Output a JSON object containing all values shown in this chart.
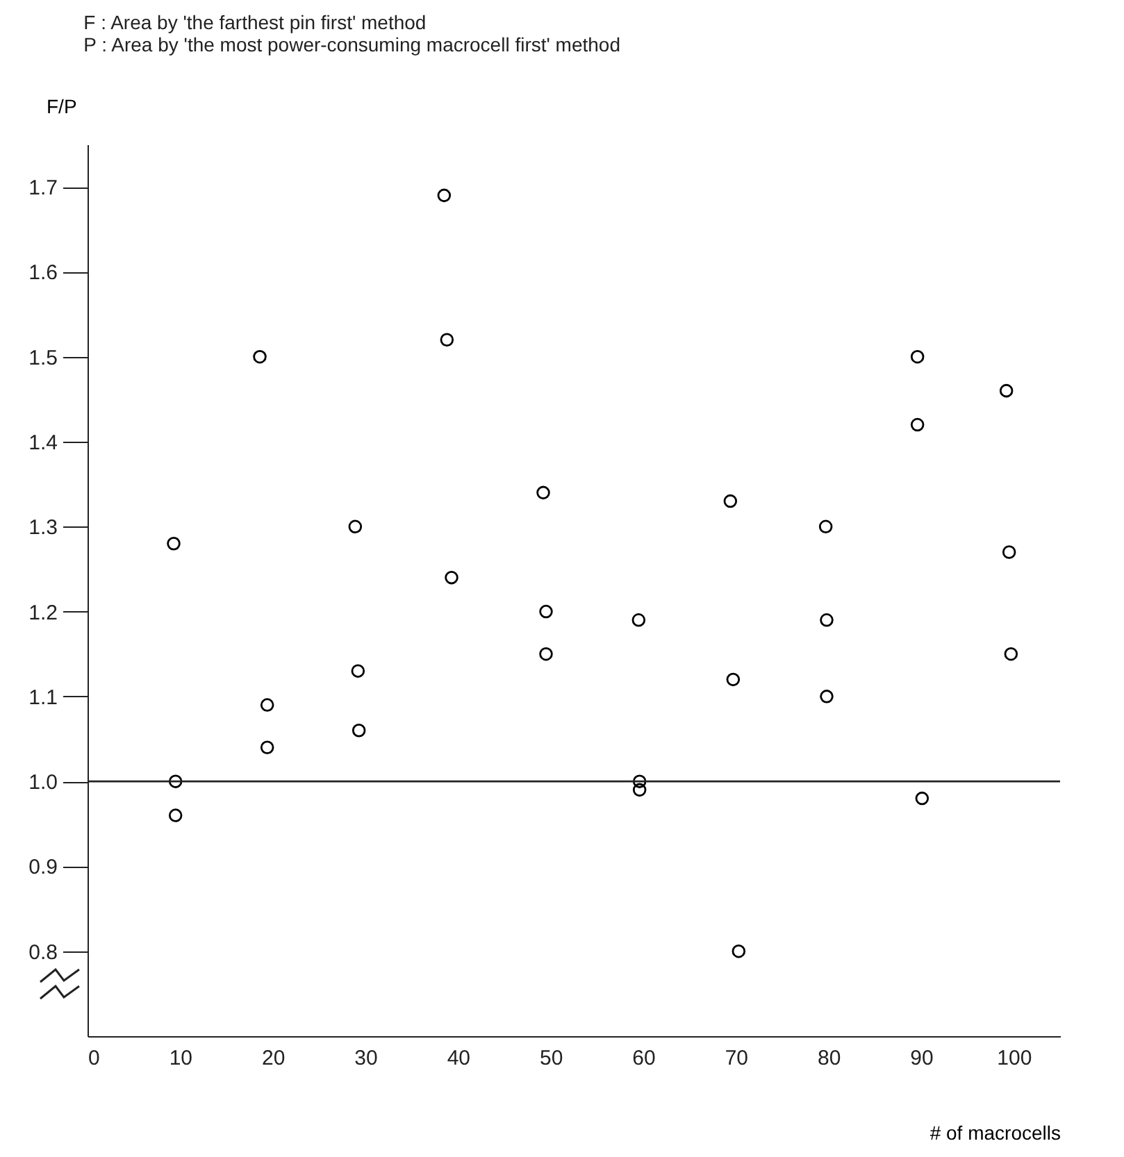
{
  "chart_data": {
    "type": "scatter",
    "annotations": [
      "F : Area by 'the farthest pin first' method",
      "P : Area by 'the most power-consuming macrocell first' method"
    ],
    "xlabel": "# of macrocells",
    "ylabel": "F/P",
    "x": [
      9.3,
      9.5,
      9.5,
      18.6,
      19.4,
      19.4,
      28.9,
      29.2,
      29.3,
      38.5,
      38.8,
      39.3,
      49.2,
      49.5,
      49.5,
      59.5,
      59.6,
      59.6,
      69.4,
      69.7,
      70.3,
      79.7,
      79.8,
      79.8,
      89.6,
      89.6,
      90.1,
      99.2,
      99.5,
      99.7
    ],
    "values": [
      1.28,
      1.0,
      0.96,
      1.5,
      1.09,
      1.04,
      1.3,
      1.13,
      1.06,
      1.69,
      1.52,
      1.24,
      1.34,
      1.2,
      1.15,
      1.19,
      1.0,
      0.99,
      1.33,
      1.12,
      0.8,
      1.3,
      1.19,
      1.1,
      1.5,
      1.42,
      0.98,
      1.46,
      1.27,
      1.15
    ],
    "color": "#000000",
    "marker": "circle",
    "xlim": [
      0,
      105
    ],
    "xticks": [
      0,
      10,
      20,
      30,
      40,
      50,
      60,
      70,
      80,
      90,
      100
    ],
    "ylim": [
      0.7,
      1.75
    ],
    "yticks": [
      0.8,
      0.9,
      {
        "value": 1,
        "label": "1.0"
      },
      1.1,
      1.2,
      1.3,
      1.4,
      1.5,
      1.6,
      1.7
    ],
    "ref_lines": [
      {
        "axis": "y",
        "value": 1
      }
    ],
    "grid": false
  }
}
